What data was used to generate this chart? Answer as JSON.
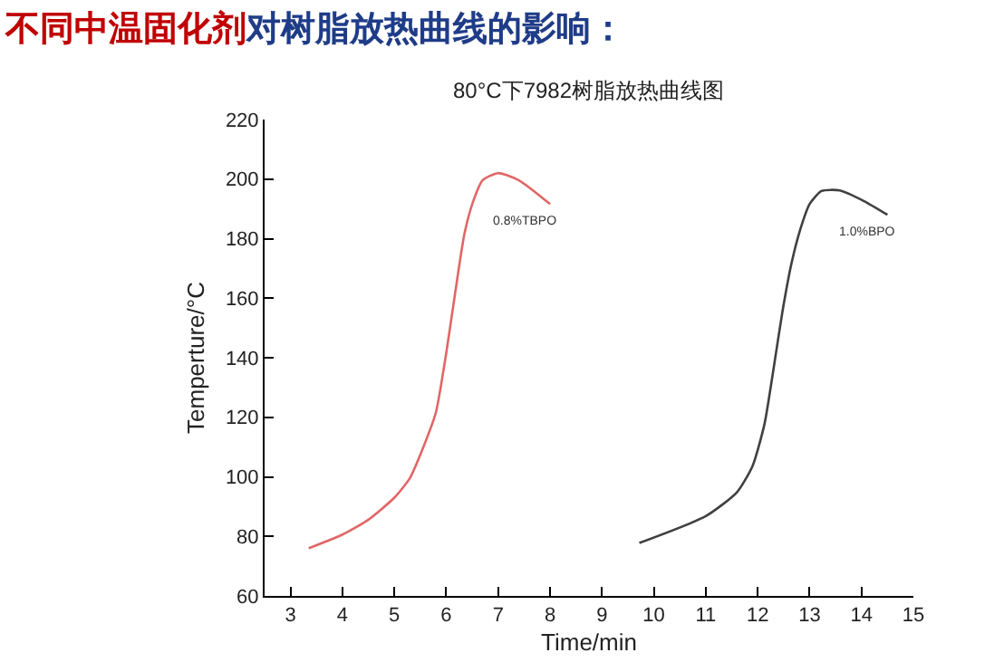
{
  "chart_data": {
    "type": "line",
    "title": "不同中温固化剂对树脂放热曲线的影响：",
    "subtitle": "80°C下7982树脂放热曲线图",
    "xlabel": "Time/min",
    "ylabel": "Temperture/°C",
    "xlim": [
      2.5,
      15
    ],
    "xticks": [
      3,
      4,
      5,
      6,
      7,
      8,
      9,
      10,
      11,
      12,
      13,
      14,
      15
    ],
    "ylim": [
      60,
      220
    ],
    "yticks": [
      60,
      80,
      100,
      120,
      140,
      160,
      180,
      200,
      220
    ],
    "marker": "none",
    "line_style": "solid",
    "series": [
      {
        "name": "0.8%TBPO",
        "color": "#e06666",
        "x": [
          3.35,
          4,
          4.5,
          5,
          5.3,
          5.55,
          5.8,
          6,
          6.17,
          6.35,
          6.52,
          6.7,
          7,
          7.4,
          8
        ],
        "values": [
          76,
          80.6,
          85.6,
          93,
          99.6,
          109.6,
          121.6,
          141.6,
          161.6,
          181.6,
          192.6,
          199.6,
          202,
          199.6,
          191.6
        ]
      },
      {
        "name": "1.0%BPO",
        "color": "#404040",
        "x": [
          9.72,
          11,
          11.6,
          11.9,
          12.13,
          12.3,
          12.48,
          12.65,
          12.83,
          13,
          13.23,
          13.58,
          14.05,
          14.5
        ],
        "values": [
          77.8,
          86.8,
          94.8,
          103.6,
          117.6,
          135.6,
          155.8,
          171.6,
          183.6,
          191.6,
          196,
          196.2,
          192.6,
          188
        ]
      }
    ]
  }
}
